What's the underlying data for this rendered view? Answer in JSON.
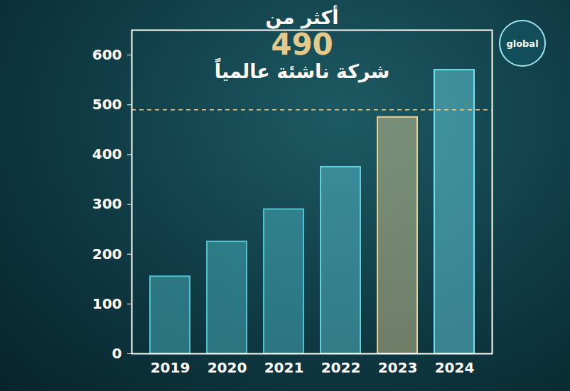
{
  "chart_data": {
    "type": "bar",
    "title": "أكثر من 490 شركة ناشئة عالمياً",
    "logo_text": "global",
    "categories": [
      "2019",
      "2020",
      "2021",
      "2022",
      "2023",
      "2024"
    ],
    "values": [
      155,
      225,
      290,
      375,
      475,
      570
    ],
    "colors": [
      "#4fc3cf",
      "#4fc3cf",
      "#4fc3cf",
      "#5fd0dc",
      "#e8d49a",
      "#6fe3f0"
    ],
    "reference_value": 490,
    "ylim": [
      0,
      650
    ],
    "yticks": [
      0,
      100,
      200,
      300,
      400,
      500,
      600
    ],
    "grid": false
  }
}
